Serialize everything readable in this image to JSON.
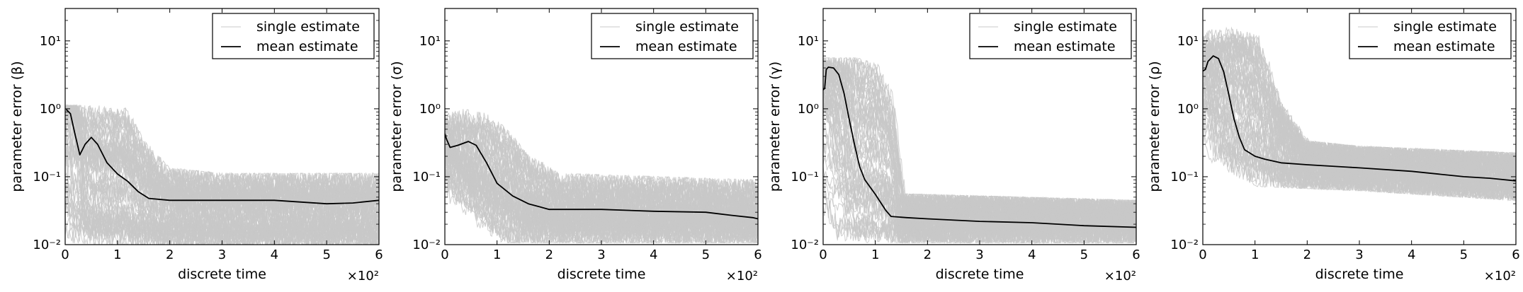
{
  "colors": {
    "single": "#c8c8c8",
    "mean": "#000000",
    "axis": "#000000",
    "background": "#ffffff"
  },
  "chart_data": [
    {
      "type": "line",
      "ylabel": "parameter error (β)",
      "xlabel": "discrete time",
      "x_multiplier": "×10²",
      "xlim": [
        0,
        6
      ],
      "xticks": [
        0,
        1,
        2,
        3,
        4,
        5,
        6
      ],
      "ylim": [
        0.01,
        30
      ],
      "yscale": "log",
      "yticks": [
        0.01,
        0.1,
        1,
        10
      ],
      "ytick_labels": [
        "10⁻²",
        "10⁻¹",
        "10⁰",
        "10¹"
      ],
      "legend": {
        "position": "top-right",
        "entries": [
          "single estimate",
          "mean estimate"
        ]
      },
      "series": [
        {
          "name": "mean estimate",
          "style": "black line",
          "points": [
            [
              0.02,
              0.98
            ],
            [
              0.1,
              0.85
            ],
            [
              0.18,
              0.45
            ],
            [
              0.28,
              0.21
            ],
            [
              0.38,
              0.3
            ],
            [
              0.5,
              0.38
            ],
            [
              0.62,
              0.3
            ],
            [
              0.8,
              0.16
            ],
            [
              1.0,
              0.11
            ],
            [
              1.2,
              0.085
            ],
            [
              1.4,
              0.06
            ],
            [
              1.6,
              0.048
            ],
            [
              2.0,
              0.045
            ],
            [
              3.0,
              0.045
            ],
            [
              4.0,
              0.045
            ],
            [
              5.0,
              0.04
            ],
            [
              5.5,
              0.041
            ],
            [
              6.0,
              0.045
            ]
          ]
        },
        {
          "name": "single estimate",
          "style": "light gray band (many runs)",
          "upper": [
            [
              0,
              1.0
            ],
            [
              0.3,
              1.0
            ],
            [
              1.0,
              1.0
            ],
            [
              1.2,
              0.9
            ],
            [
              1.5,
              0.3
            ],
            [
              2.0,
              0.12
            ],
            [
              3.0,
              0.1
            ],
            [
              6.0,
              0.1
            ]
          ],
          "lower": [
            [
              0,
              0.9
            ],
            [
              0.12,
              0.4
            ],
            [
              0.16,
              0.02
            ],
            [
              0.3,
              0.012
            ],
            [
              1.0,
              0.011
            ],
            [
              3.0,
              0.011
            ],
            [
              6.0,
              0.011
            ]
          ]
        }
      ]
    },
    {
      "type": "line",
      "ylabel": "parameter error (σ)",
      "xlabel": "discrete time",
      "x_multiplier": "×10²",
      "xlim": [
        0,
        6
      ],
      "xticks": [
        0,
        1,
        2,
        3,
        4,
        5,
        6
      ],
      "ylim": [
        0.01,
        30
      ],
      "yscale": "log",
      "yticks": [
        0.01,
        0.1,
        1,
        10
      ],
      "ytick_labels": [
        "10⁻²",
        "10⁻¹",
        "10⁰",
        "10¹"
      ],
      "legend": {
        "position": "top-right",
        "entries": [
          "single estimate",
          "mean estimate"
        ]
      },
      "series": [
        {
          "name": "mean estimate",
          "style": "black line",
          "points": [
            [
              0.0,
              0.43
            ],
            [
              0.03,
              0.36
            ],
            [
              0.1,
              0.27
            ],
            [
              0.25,
              0.29
            ],
            [
              0.45,
              0.33
            ],
            [
              0.6,
              0.29
            ],
            [
              0.8,
              0.16
            ],
            [
              1.0,
              0.08
            ],
            [
              1.3,
              0.052
            ],
            [
              1.6,
              0.04
            ],
            [
              2.0,
              0.033
            ],
            [
              2.5,
              0.033
            ],
            [
              3.0,
              0.033
            ],
            [
              4.0,
              0.031
            ],
            [
              5.0,
              0.03
            ],
            [
              5.5,
              0.027
            ],
            [
              5.9,
              0.025
            ],
            [
              6.0,
              0.024
            ]
          ]
        },
        {
          "name": "single estimate",
          "style": "light gray band (many runs)",
          "upper": [
            [
              0,
              0.7
            ],
            [
              0.4,
              0.9
            ],
            [
              0.8,
              0.8
            ],
            [
              1.2,
              0.5
            ],
            [
              1.6,
              0.2
            ],
            [
              2.2,
              0.1
            ],
            [
              6.0,
              0.08
            ]
          ],
          "lower": [
            [
              0,
              0.15
            ],
            [
              0.3,
              0.05
            ],
            [
              0.8,
              0.02
            ],
            [
              1.2,
              0.012
            ],
            [
              6.0,
              0.012
            ]
          ]
        }
      ]
    },
    {
      "type": "line",
      "ylabel": "parameter error (γ)",
      "xlabel": "discrete time",
      "x_multiplier": "×10²",
      "xlim": [
        0,
        6
      ],
      "xticks": [
        0,
        1,
        2,
        3,
        4,
        5,
        6
      ],
      "ylim": [
        0.01,
        30
      ],
      "yscale": "log",
      "yticks": [
        0.01,
        0.1,
        1,
        10
      ],
      "ytick_labels": [
        "10⁻²",
        "10⁻¹",
        "10⁰",
        "10¹"
      ],
      "legend": {
        "position": "top-right",
        "entries": [
          "single estimate",
          "mean estimate"
        ]
      },
      "series": [
        {
          "name": "mean estimate",
          "style": "black line",
          "points": [
            [
              0.0,
              1.9
            ],
            [
              0.03,
              2.0
            ],
            [
              0.06,
              3.8
            ],
            [
              0.1,
              4.1
            ],
            [
              0.2,
              4.0
            ],
            [
              0.3,
              3.2
            ],
            [
              0.4,
              1.7
            ],
            [
              0.5,
              0.7
            ],
            [
              0.6,
              0.3
            ],
            [
              0.7,
              0.14
            ],
            [
              0.8,
              0.09
            ],
            [
              1.0,
              0.055
            ],
            [
              1.2,
              0.032
            ],
            [
              1.3,
              0.026
            ],
            [
              1.6,
              0.025
            ],
            [
              2.0,
              0.024
            ],
            [
              3.0,
              0.022
            ],
            [
              4.0,
              0.021
            ],
            [
              5.0,
              0.019
            ],
            [
              6.0,
              0.018
            ]
          ]
        },
        {
          "name": "single estimate",
          "style": "light gray band (many runs)",
          "upper": [
            [
              0,
              5.0
            ],
            [
              0.6,
              5.0
            ],
            [
              1.0,
              4.0
            ],
            [
              1.3,
              1.5
            ],
            [
              1.5,
              0.05
            ],
            [
              6.0,
              0.04
            ]
          ],
          "lower": [
            [
              0,
              1.0
            ],
            [
              0.2,
              0.3
            ],
            [
              0.35,
              0.03
            ],
            [
              0.5,
              0.012
            ],
            [
              6.0,
              0.012
            ]
          ]
        }
      ]
    },
    {
      "type": "line",
      "ylabel": "parameter error (ρ)",
      "xlabel": "discrete time",
      "x_multiplier": "×10²",
      "xlim": [
        0,
        6
      ],
      "xticks": [
        0,
        1,
        2,
        3,
        4,
        5,
        6
      ],
      "ylim": [
        0.01,
        30
      ],
      "yscale": "log",
      "yticks": [
        0.01,
        0.1,
        1,
        10
      ],
      "ytick_labels": [
        "10⁻²",
        "10⁻¹",
        "10⁰",
        "10¹"
      ],
      "legend": {
        "position": "top-right",
        "entries": [
          "single estimate",
          "mean estimate"
        ]
      },
      "series": [
        {
          "name": "mean estimate",
          "style": "black line",
          "points": [
            [
              0.0,
              3.6
            ],
            [
              0.05,
              3.8
            ],
            [
              0.1,
              5.0
            ],
            [
              0.2,
              6.0
            ],
            [
              0.3,
              5.5
            ],
            [
              0.4,
              3.5
            ],
            [
              0.5,
              1.6
            ],
            [
              0.6,
              0.7
            ],
            [
              0.7,
              0.38
            ],
            [
              0.8,
              0.25
            ],
            [
              1.0,
              0.2
            ],
            [
              1.2,
              0.18
            ],
            [
              1.5,
              0.16
            ],
            [
              2.0,
              0.15
            ],
            [
              3.0,
              0.135
            ],
            [
              4.0,
              0.12
            ],
            [
              5.0,
              0.1
            ],
            [
              5.5,
              0.095
            ],
            [
              6.0,
              0.087
            ]
          ]
        },
        {
          "name": "single estimate",
          "style": "light gray band (many runs)",
          "upper": [
            [
              0,
              8.0
            ],
            [
              0.5,
              14.0
            ],
            [
              1.0,
              11.0
            ],
            [
              1.5,
              1.0
            ],
            [
              2.0,
              0.3
            ],
            [
              3.0,
              0.25
            ],
            [
              6.0,
              0.2
            ]
          ],
          "lower": [
            [
              0,
              1.0
            ],
            [
              0.3,
              0.4
            ],
            [
              0.5,
              0.12
            ],
            [
              1.0,
              0.08
            ],
            [
              3.0,
              0.07
            ],
            [
              6.0,
              0.05
            ]
          ]
        }
      ]
    }
  ]
}
